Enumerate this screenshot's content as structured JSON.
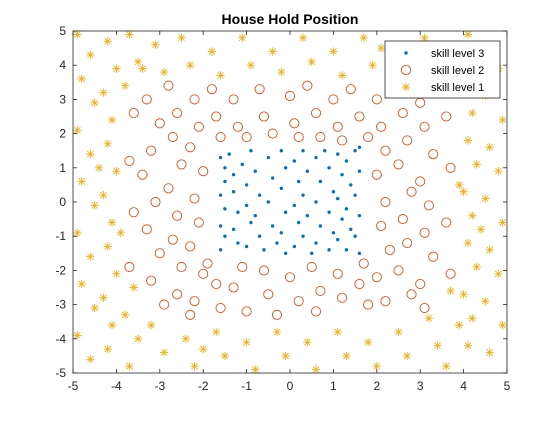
{
  "chart_data": {
    "type": "scatter",
    "title": "House Hold Position",
    "xlabel": "",
    "ylabel": "",
    "xlim": [
      -5,
      5
    ],
    "ylim": [
      -5,
      5
    ],
    "xticks": [
      -5,
      -4,
      -3,
      -2,
      -1,
      0,
      1,
      2,
      3,
      4,
      5
    ],
    "yticks": [
      -5,
      -4,
      -3,
      -2,
      -1,
      0,
      1,
      2,
      3,
      4,
      5
    ],
    "grid": false,
    "legend_position": "top-right",
    "series": [
      {
        "name": "skill level 3",
        "marker": "dot",
        "color": "#0072BD",
        "points": [
          [
            -1.6,
            1.3
          ],
          [
            -1.5,
            1.0
          ],
          [
            -1.5,
            0.6
          ],
          [
            -1.6,
            0.2
          ],
          [
            -1.5,
            -0.2
          ],
          [
            -1.6,
            -0.7
          ],
          [
            -1.5,
            -1.0
          ],
          [
            -1.6,
            -1.4
          ],
          [
            -1.4,
            1.4
          ],
          [
            -1.3,
            0.8
          ],
          [
            -1.3,
            0.3
          ],
          [
            -1.2,
            -0.3
          ],
          [
            -1.3,
            -0.8
          ],
          [
            -1.2,
            -1.2
          ],
          [
            -1.1,
            1.1
          ],
          [
            -1.0,
            0.5
          ],
          [
            -1.0,
            -0.1
          ],
          [
            -0.9,
            -0.6
          ],
          [
            -1.0,
            -1.3
          ],
          [
            -0.9,
            1.5
          ],
          [
            -0.8,
            0.9
          ],
          [
            -0.7,
            0.2
          ],
          [
            -0.8,
            -0.4
          ],
          [
            -0.7,
            -1.0
          ],
          [
            -0.6,
            -1.4
          ],
          [
            -0.5,
            1.3
          ],
          [
            -0.4,
            0.7
          ],
          [
            -0.5,
            0.0
          ],
          [
            -0.4,
            -0.7
          ],
          [
            -0.3,
            -1.2
          ],
          [
            -0.2,
            1.5
          ],
          [
            -0.1,
            1.0
          ],
          [
            -0.2,
            0.4
          ],
          [
            -0.1,
            -0.3
          ],
          [
            -0.2,
            -0.9
          ],
          [
            -0.1,
            -1.5
          ],
          [
            0.1,
            1.2
          ],
          [
            0.2,
            0.6
          ],
          [
            0.1,
            -0.1
          ],
          [
            0.2,
            -0.6
          ],
          [
            0.1,
            -1.3
          ],
          [
            0.3,
            1.5
          ],
          [
            0.4,
            0.9
          ],
          [
            0.3,
            0.2
          ],
          [
            0.4,
            -0.4
          ],
          [
            0.3,
            -1.0
          ],
          [
            0.5,
            -1.5
          ],
          [
            0.6,
            1.3
          ],
          [
            0.7,
            0.6
          ],
          [
            0.6,
            0.0
          ],
          [
            0.7,
            -0.7
          ],
          [
            0.6,
            -1.2
          ],
          [
            0.8,
            1.5
          ],
          [
            0.9,
            1.0
          ],
          [
            1.0,
            0.3
          ],
          [
            0.9,
            -0.3
          ],
          [
            1.0,
            -0.9
          ],
          [
            0.9,
            -1.4
          ],
          [
            1.1,
            1.4
          ],
          [
            1.2,
            0.8
          ],
          [
            1.1,
            0.1
          ],
          [
            1.2,
            -0.5
          ],
          [
            1.1,
            -1.1
          ],
          [
            1.3,
            1.2
          ],
          [
            1.4,
            0.5
          ],
          [
            1.3,
            -0.2
          ],
          [
            1.4,
            -0.8
          ],
          [
            1.3,
            -1.4
          ],
          [
            1.5,
            1.5
          ],
          [
            1.6,
            0.9
          ],
          [
            1.5,
            0.2
          ],
          [
            1.6,
            -0.4
          ],
          [
            1.5,
            -1.0
          ],
          [
            1.6,
            -1.5
          ],
          [
            1.6,
            1.6
          ]
        ]
      },
      {
        "name": "skill level 2",
        "marker": "circle",
        "color": "#D95319",
        "points": [
          [
            -3.3,
            3.0
          ],
          [
            -3.0,
            2.3
          ],
          [
            -3.2,
            1.5
          ],
          [
            -3.4,
            0.8
          ],
          [
            -3.1,
            0.0
          ],
          [
            -3.3,
            -0.8
          ],
          [
            -3.0,
            -1.5
          ],
          [
            -3.2,
            -2.3
          ],
          [
            -2.9,
            -3.0
          ],
          [
            -2.8,
            3.4
          ],
          [
            -2.6,
            2.6
          ],
          [
            -2.7,
            1.9
          ],
          [
            -2.5,
            1.1
          ],
          [
            -2.8,
            0.4
          ],
          [
            -2.6,
            -0.4
          ],
          [
            -2.7,
            -1.1
          ],
          [
            -2.5,
            -1.9
          ],
          [
            -2.6,
            -2.7
          ],
          [
            -2.3,
            -3.3
          ],
          [
            -2.2,
            3.0
          ],
          [
            -2.1,
            2.2
          ],
          [
            -2.3,
            1.6
          ],
          [
            -2.0,
            0.9
          ],
          [
            -2.2,
            0.1
          ],
          [
            -2.1,
            -0.6
          ],
          [
            -2.3,
            -1.3
          ],
          [
            -2.0,
            -2.1
          ],
          [
            -2.2,
            -2.9
          ],
          [
            -1.8,
            3.3
          ],
          [
            -1.7,
            2.5
          ],
          [
            -1.6,
            1.9
          ],
          [
            -1.9,
            -1.8
          ],
          [
            -1.7,
            -2.4
          ],
          [
            -1.6,
            -3.1
          ],
          [
            -1.3,
            3.0
          ],
          [
            -1.2,
            2.2
          ],
          [
            -1.0,
            1.9
          ],
          [
            -1.1,
            -1.9
          ],
          [
            -1.3,
            -2.5
          ],
          [
            -1.0,
            -3.2
          ],
          [
            -0.7,
            3.3
          ],
          [
            -0.6,
            2.5
          ],
          [
            -0.4,
            2.0
          ],
          [
            -0.6,
            -2.0
          ],
          [
            -0.5,
            -2.7
          ],
          [
            -0.3,
            -3.3
          ],
          [
            0.0,
            3.1
          ],
          [
            0.1,
            2.3
          ],
          [
            0.2,
            1.9
          ],
          [
            0.0,
            -2.2
          ],
          [
            0.2,
            -2.9
          ],
          [
            0.4,
            3.4
          ],
          [
            0.6,
            2.6
          ],
          [
            0.7,
            1.9
          ],
          [
            0.5,
            -1.9
          ],
          [
            0.7,
            -2.6
          ],
          [
            0.6,
            -3.2
          ],
          [
            1.0,
            3.0
          ],
          [
            1.1,
            2.2
          ],
          [
            1.2,
            1.8
          ],
          [
            1.1,
            -2.1
          ],
          [
            1.2,
            -2.8
          ],
          [
            1.4,
            3.3
          ],
          [
            1.6,
            2.5
          ],
          [
            1.8,
            1.9
          ],
          [
            1.7,
            -1.8
          ],
          [
            1.6,
            -2.4
          ],
          [
            1.8,
            -3.0
          ],
          [
            2.0,
            3.0
          ],
          [
            2.1,
            2.2
          ],
          [
            2.2,
            1.5
          ],
          [
            2.0,
            0.8
          ],
          [
            2.2,
            0.0
          ],
          [
            2.1,
            -0.7
          ],
          [
            2.3,
            -1.4
          ],
          [
            2.0,
            -2.2
          ],
          [
            2.2,
            -2.9
          ],
          [
            2.5,
            3.3
          ],
          [
            2.6,
            2.6
          ],
          [
            2.7,
            1.8
          ],
          [
            2.5,
            1.1
          ],
          [
            2.8,
            0.3
          ],
          [
            2.6,
            -0.5
          ],
          [
            2.7,
            -1.2
          ],
          [
            2.5,
            -2.0
          ],
          [
            2.8,
            -2.7
          ],
          [
            3.0,
            2.9
          ],
          [
            3.1,
            2.2
          ],
          [
            3.3,
            1.4
          ],
          [
            3.0,
            0.6
          ],
          [
            3.2,
            -0.1
          ],
          [
            3.1,
            -0.9
          ],
          [
            3.3,
            -1.6
          ],
          [
            3.0,
            -2.4
          ],
          [
            3.1,
            -3.1
          ],
          [
            -3.6,
            2.6
          ],
          [
            -3.7,
            1.2
          ],
          [
            -3.6,
            -0.3
          ],
          [
            -3.7,
            -1.9
          ],
          [
            3.6,
            2.5
          ],
          [
            3.7,
            1.0
          ],
          [
            3.6,
            -0.6
          ],
          [
            3.7,
            -2.1
          ]
        ]
      },
      {
        "name": "skill level 1",
        "marker": "star",
        "color": "#EDB120",
        "points": [
          [
            -4.9,
            4.9
          ],
          [
            -4.6,
            4.3
          ],
          [
            -4.8,
            3.6
          ],
          [
            -4.5,
            2.9
          ],
          [
            -4.9,
            2.1
          ],
          [
            -4.6,
            1.4
          ],
          [
            -4.8,
            0.6
          ],
          [
            -4.5,
            -0.1
          ],
          [
            -4.9,
            -0.9
          ],
          [
            -4.6,
            -1.6
          ],
          [
            -4.8,
            -2.4
          ],
          [
            -4.5,
            -3.1
          ],
          [
            -4.9,
            -3.9
          ],
          [
            -4.6,
            -4.6
          ],
          [
            -4.2,
            4.7
          ],
          [
            -4.0,
            3.9
          ],
          [
            -4.3,
            3.2
          ],
          [
            -4.1,
            2.4
          ],
          [
            -4.2,
            1.7
          ],
          [
            -4.0,
            0.9
          ],
          [
            -4.3,
            0.2
          ],
          [
            -4.1,
            -0.6
          ],
          [
            -4.2,
            -1.3
          ],
          [
            -4.0,
            -2.1
          ],
          [
            -4.3,
            -2.8
          ],
          [
            -4.1,
            -3.6
          ],
          [
            -4.2,
            -4.3
          ],
          [
            -3.7,
            4.9
          ],
          [
            -3.5,
            4.1
          ],
          [
            -3.8,
            3.4
          ],
          [
            -3.6,
            -2.5
          ],
          [
            -3.8,
            -3.3
          ],
          [
            -3.5,
            -4.0
          ],
          [
            -3.7,
            -4.8
          ],
          [
            -3.1,
            4.6
          ],
          [
            -2.9,
            3.8
          ],
          [
            -3.2,
            -3.6
          ],
          [
            -2.9,
            -4.4
          ],
          [
            -2.5,
            4.8
          ],
          [
            -2.3,
            4.0
          ],
          [
            -2.4,
            -4.0
          ],
          [
            -2.2,
            -4.8
          ],
          [
            -1.8,
            4.4
          ],
          [
            -1.6,
            3.7
          ],
          [
            -1.7,
            -3.8
          ],
          [
            -1.5,
            -4.5
          ],
          [
            -1.1,
            4.8
          ],
          [
            -0.9,
            4.0
          ],
          [
            -1.0,
            -4.1
          ],
          [
            -0.8,
            -4.9
          ],
          [
            -0.4,
            4.4
          ],
          [
            -0.2,
            3.8
          ],
          [
            -0.3,
            -3.8
          ],
          [
            -0.1,
            -4.5
          ],
          [
            0.3,
            4.8
          ],
          [
            0.5,
            4.1
          ],
          [
            0.4,
            -4.1
          ],
          [
            0.6,
            -4.9
          ],
          [
            1.0,
            4.4
          ],
          [
            1.2,
            3.7
          ],
          [
            1.1,
            -3.8
          ],
          [
            1.3,
            -4.5
          ],
          [
            1.7,
            4.8
          ],
          [
            1.9,
            4.0
          ],
          [
            1.8,
            -4.1
          ],
          [
            2.0,
            -4.8
          ],
          [
            2.4,
            4.4
          ],
          [
            2.6,
            3.7
          ],
          [
            2.5,
            -3.8
          ],
          [
            2.7,
            -4.5
          ],
          [
            3.1,
            4.8
          ],
          [
            3.3,
            4.0
          ],
          [
            3.2,
            -3.4
          ],
          [
            3.4,
            -4.2
          ],
          [
            3.6,
            4.5
          ],
          [
            3.8,
            3.8
          ],
          [
            3.7,
            -2.6
          ],
          [
            3.9,
            -3.6
          ],
          [
            3.6,
            -4.8
          ],
          [
            4.1,
            4.9
          ],
          [
            4.3,
            4.1
          ],
          [
            4.0,
            3.3
          ],
          [
            4.2,
            2.6
          ],
          [
            4.1,
            1.8
          ],
          [
            4.3,
            1.1
          ],
          [
            4.0,
            0.3
          ],
          [
            4.2,
            -0.4
          ],
          [
            4.1,
            -1.2
          ],
          [
            4.3,
            -1.9
          ],
          [
            4.0,
            -2.7
          ],
          [
            4.2,
            -3.4
          ],
          [
            4.1,
            -4.2
          ],
          [
            4.6,
            4.6
          ],
          [
            4.8,
            3.9
          ],
          [
            4.5,
            3.1
          ],
          [
            4.9,
            2.4
          ],
          [
            4.6,
            1.6
          ],
          [
            4.8,
            0.9
          ],
          [
            4.5,
            0.1
          ],
          [
            4.9,
            -0.6
          ],
          [
            4.6,
            -1.4
          ],
          [
            4.8,
            -2.1
          ],
          [
            4.5,
            -2.9
          ],
          [
            4.9,
            -3.6
          ],
          [
            4.6,
            -4.4
          ],
          [
            -3.4,
            3.9
          ],
          [
            3.4,
            3.6
          ],
          [
            -3.9,
            -0.9
          ],
          [
            3.9,
            0.5
          ],
          [
            -4.4,
            1.0
          ],
          [
            4.4,
            -0.8
          ],
          [
            -2.0,
            -4.3
          ],
          [
            2.1,
            4.5
          ]
        ]
      }
    ]
  }
}
